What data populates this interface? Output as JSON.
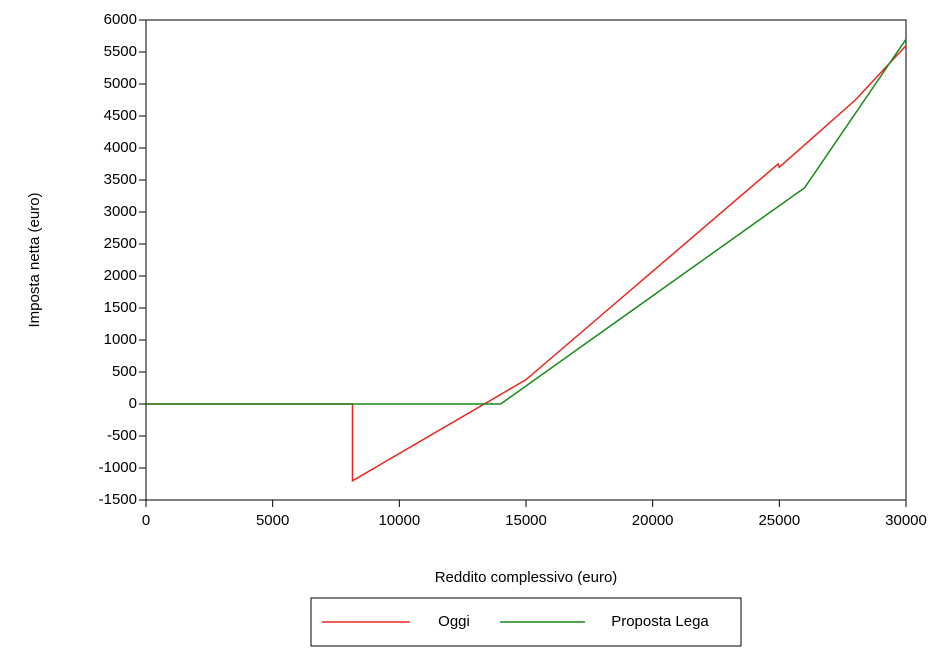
{
  "chart_data": {
    "type": "line",
    "x_label": "Reddito complessivo (euro)",
    "y_label": "Imposta netta (euro)",
    "xlim": [
      0,
      30000
    ],
    "xticks": [
      0,
      5000,
      10000,
      15000,
      20000,
      25000,
      30000
    ],
    "ylim": [
      -1500,
      6000
    ],
    "yticks": [
      -1500,
      -1000,
      -500,
      0,
      500,
      1000,
      1500,
      2000,
      2500,
      3000,
      3500,
      4000,
      4500,
      5000,
      5500,
      6000
    ],
    "grid": false,
    "legend": "bottom",
    "series": [
      {
        "name": "Oggi",
        "color": "#e8281e",
        "x": [
          0,
          8150,
          8150,
          15000,
          24950,
          25000,
          28000,
          30000
        ],
        "values": [
          0,
          0,
          -1200,
          380,
          3750,
          3700,
          4750,
          5600
        ]
      },
      {
        "name": "Proposta Lega",
        "color": "#1a8a1a",
        "x": [
          0,
          14000,
          26000,
          30000
        ],
        "values": [
          0,
          0,
          3380,
          5700
        ]
      }
    ]
  }
}
